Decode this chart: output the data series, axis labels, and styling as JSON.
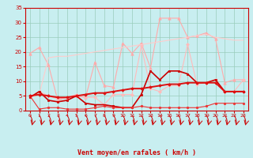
{
  "x": [
    0,
    1,
    2,
    3,
    4,
    5,
    6,
    7,
    8,
    9,
    10,
    11,
    12,
    13,
    14,
    15,
    16,
    17,
    18,
    19,
    20,
    21,
    22,
    23
  ],
  "series": [
    {
      "name": "rafales_max",
      "color": "#ffaaaa",
      "lw": 0.8,
      "marker": "^",
      "ms": 2.5,
      "values": [
        19.5,
        21.5,
        15.5,
        3.5,
        4.5,
        5.0,
        4.5,
        16.5,
        8.5,
        8.0,
        23.0,
        19.5,
        23.0,
        14.5,
        31.5,
        31.5,
        31.5,
        25.0,
        25.5,
        26.5,
        24.5,
        9.5,
        10.5,
        10.5
      ]
    },
    {
      "name": "rafales_moy1",
      "color": "#ffbbbb",
      "lw": 0.8,
      "marker": "D",
      "ms": 2.0,
      "values": [
        4.5,
        6.5,
        5.0,
        4.0,
        4.5,
        5.5,
        4.5,
        4.5,
        2.0,
        5.5,
        5.5,
        5.5,
        22.0,
        7.5,
        6.5,
        8.5,
        8.5,
        22.5,
        9.0,
        9.5,
        10.5,
        6.5,
        6.5,
        10.5
      ]
    },
    {
      "name": "vent_moy_top",
      "color": "#ffcccc",
      "lw": 0.8,
      "marker": null,
      "ms": 0,
      "values": [
        4.5,
        5.5,
        18.0,
        18.5,
        18.5,
        19.0,
        19.5,
        20.0,
        20.5,
        21.0,
        21.5,
        22.0,
        22.5,
        23.0,
        23.5,
        24.0,
        24.5,
        25.0,
        25.5,
        26.0,
        25.0,
        24.5,
        24.0,
        24.0
      ]
    },
    {
      "name": "vent_fort",
      "color": "#cc0000",
      "lw": 1.2,
      "marker": "s",
      "ms": 2.0,
      "values": [
        4.5,
        6.5,
        3.5,
        3.0,
        3.5,
        5.0,
        2.5,
        2.0,
        2.0,
        1.5,
        1.0,
        1.0,
        5.5,
        13.5,
        10.5,
        13.5,
        13.5,
        12.5,
        9.5,
        9.5,
        10.5,
        6.5,
        6.5,
        6.5
      ]
    },
    {
      "name": "vent_moy_low",
      "color": "#ee3333",
      "lw": 0.8,
      "marker": "o",
      "ms": 1.8,
      "values": [
        5.0,
        0.5,
        1.0,
        1.0,
        0.5,
        0.5,
        0.5,
        1.0,
        1.5,
        1.0,
        1.0,
        1.0,
        1.5,
        1.0,
        1.0,
        1.0,
        1.0,
        1.0,
        1.0,
        1.5,
        2.5,
        2.5,
        2.5,
        2.5
      ]
    },
    {
      "name": "calm_growing",
      "color": "#dd1111",
      "lw": 1.4,
      "marker": "D",
      "ms": 1.8,
      "values": [
        5.0,
        5.5,
        5.0,
        4.5,
        4.5,
        5.0,
        5.5,
        6.0,
        6.0,
        6.5,
        7.0,
        7.5,
        7.5,
        8.0,
        8.5,
        9.0,
        9.0,
        9.5,
        9.5,
        9.5,
        9.5,
        6.5,
        6.5,
        6.5
      ]
    }
  ],
  "xlabel": "Vent moyen/en rafales ( km/h )",
  "xlim": [
    0,
    23
  ],
  "ylim": [
    0,
    35
  ],
  "yticks": [
    0,
    5,
    10,
    15,
    20,
    25,
    30,
    35
  ],
  "xticks": [
    0,
    1,
    2,
    3,
    4,
    5,
    6,
    7,
    8,
    9,
    10,
    11,
    12,
    13,
    14,
    15,
    16,
    17,
    18,
    19,
    20,
    21,
    22,
    23
  ],
  "bg_color": "#c8eef0",
  "grid_color": "#99ccbb",
  "tick_color": "#cc0000",
  "label_color": "#cc0000"
}
